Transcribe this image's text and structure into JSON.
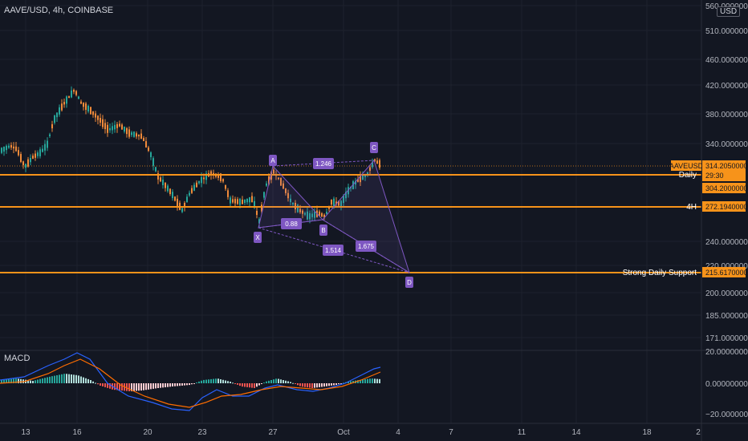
{
  "header": {
    "symbol": "AAVE/USD, 4h, COINBASE",
    "currency_badge": "USD"
  },
  "colors": {
    "background": "#131722",
    "up": "#26a69a",
    "down": "#ef8a3a",
    "level_line": "#f7931a",
    "pattern": "#7e57c2",
    "macd_line": "#2962ff",
    "signal_line": "#ff6d00"
  },
  "price_axis": {
    "labels": [
      "560.00000000",
      "510.00000000",
      "460.00000000",
      "420.00000000",
      "380.00000000",
      "340.00000000",
      "240.00000000",
      "220.00000000",
      "200.00000000",
      "185.00000000",
      "171.00000000"
    ]
  },
  "price_tags": {
    "current_symbol": "AAVEUSD",
    "current_price": "314.20500000",
    "countdown": "29:30",
    "daily_value": "304.20000000",
    "h4_value": "272.19400000",
    "support_value": "215.61700000"
  },
  "levels": {
    "daily_label": "Daily",
    "h4_label": "4H",
    "support_label": "Strong Daily Support"
  },
  "pattern": {
    "points": [
      "X",
      "A",
      "B",
      "C",
      "D"
    ],
    "ratios": [
      "1.246",
      "0.88",
      "1.514",
      "1.675"
    ]
  },
  "macd": {
    "label": "MACD",
    "axis_labels": [
      "20.00000000",
      "0.00000000",
      "−20.00000000"
    ]
  },
  "time_axis": {
    "labels": [
      "13",
      "16",
      "20",
      "23",
      "27",
      "Oct",
      "4",
      "7",
      "11",
      "14",
      "18",
      "2"
    ]
  }
}
